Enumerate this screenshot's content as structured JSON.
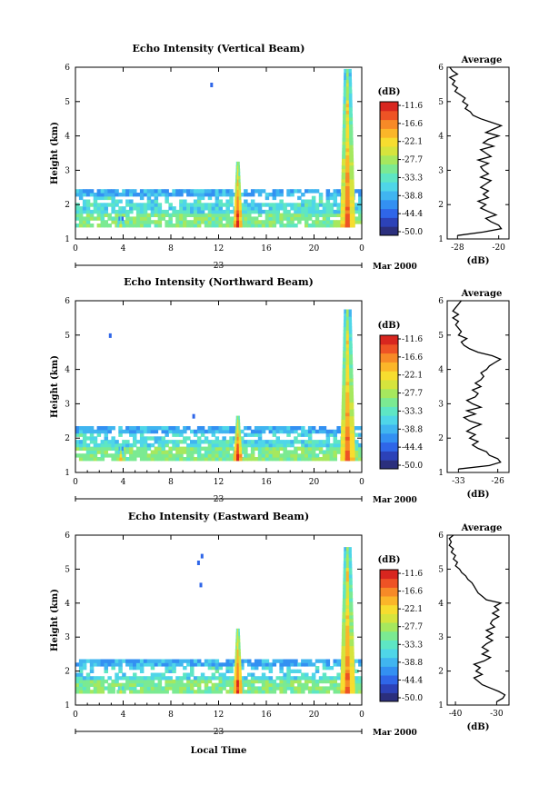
{
  "chart_data": [
    {
      "type": "heatmap",
      "title": "Echo Intensity (Vertical Beam)",
      "ylabel": "Height (km)",
      "x_ticks": [
        "0",
        "4",
        "8",
        "12",
        "16",
        "20",
        "0"
      ],
      "x_range": [
        0,
        24
      ],
      "date_label": "23",
      "date_right": "Mar 2000",
      "y_ticks": [
        "1",
        "2",
        "3",
        "4",
        "5",
        "6"
      ],
      "ylim": [
        1,
        6
      ],
      "colorbar": {
        "unit": "(dB)",
        "ticks": [
          "-11.6",
          "-16.6",
          "-22.1",
          "-27.7",
          "-33.3",
          "-38.8",
          "-44.4",
          "-50.0"
        ],
        "range": [
          -50.0,
          -11.6
        ]
      },
      "layers": {
        "top": 2.45,
        "gap_top": 2.2,
        "gap_bottom": 2.0,
        "bottom": 1.35
      },
      "spikes": [
        {
          "t": 3.8,
          "top": 1.65,
          "peak": -24
        },
        {
          "t": 13.6,
          "top": 3.2,
          "peak": -11
        },
        {
          "t": 22.8,
          "top": 5.9,
          "peak": -14
        }
      ],
      "isolated": [
        {
          "t": 11.3,
          "h": 5.45
        }
      ],
      "average": {
        "title": "Average",
        "xlabel": "(dB)",
        "x_ticks": [
          "-28",
          "-20"
        ],
        "xlim": [
          -30,
          -18
        ],
        "y_ticks": [
          "1",
          "2",
          "3",
          "4",
          "5",
          "6"
        ],
        "ylim": [
          1,
          6
        ],
        "h": [
          1.1,
          1.2,
          1.3,
          1.4,
          1.5,
          1.6,
          1.7,
          1.8,
          1.9,
          2.0,
          2.1,
          2.2,
          2.3,
          2.4,
          2.5,
          2.6,
          2.7,
          2.8,
          2.9,
          3.0,
          3.1,
          3.2,
          3.3,
          3.4,
          3.5,
          3.6,
          3.7,
          3.8,
          3.9,
          4.0,
          4.1,
          4.2,
          4.3,
          4.4,
          4.5,
          4.6,
          4.7,
          4.8,
          4.9,
          5.0,
          5.1,
          5.2,
          5.3,
          5.4,
          5.5,
          5.6,
          5.7,
          5.8,
          5.9,
          6.0
        ],
        "v": [
          -28.0,
          -23.0,
          -19.5,
          -20.0,
          -21.5,
          -22.5,
          -20.5,
          -22.0,
          -23.5,
          -22.5,
          -24.0,
          -22.0,
          -23.0,
          -22.0,
          -23.5,
          -22.5,
          -21.5,
          -23.5,
          -22.0,
          -23.0,
          -23.5,
          -22.0,
          -24.0,
          -21.5,
          -22.5,
          -23.5,
          -21.0,
          -23.0,
          -22.0,
          -20.0,
          -22.5,
          -21.0,
          -19.5,
          -21.5,
          -23.5,
          -25.0,
          -25.5,
          -26.5,
          -26.0,
          -27.0,
          -26.5,
          -27.5,
          -28.5,
          -28.0,
          -29.0,
          -28.5,
          -29.5,
          -28.0,
          -29.0,
          -29.5
        ]
      }
    },
    {
      "type": "heatmap",
      "title": "Echo Intensity (Northward Beam)",
      "ylabel": "Height (km)",
      "x_ticks": [
        "0",
        "4",
        "8",
        "12",
        "16",
        "20",
        "0"
      ],
      "x_range": [
        0,
        24
      ],
      "date_label": "23",
      "date_right": "Mar 2000",
      "y_ticks": [
        "1",
        "2",
        "3",
        "4",
        "5",
        "6"
      ],
      "ylim": [
        1,
        6
      ],
      "colorbar": {
        "unit": "(dB)",
        "ticks": [
          "-11.6",
          "-16.6",
          "-22.1",
          "-27.7",
          "-33.3",
          "-38.8",
          "-44.4",
          "-50.0"
        ],
        "range": [
          -50.0,
          -11.6
        ]
      },
      "layers": {
        "top": 2.35,
        "gap_top": 2.1,
        "gap_bottom": 1.9,
        "bottom": 1.35
      },
      "spikes": [
        {
          "t": 3.8,
          "top": 1.75,
          "peak": -20
        },
        {
          "t": 13.6,
          "top": 2.6,
          "peak": -11
        },
        {
          "t": 22.8,
          "top": 5.7,
          "peak": -14
        }
      ],
      "isolated": [
        {
          "t": 2.8,
          "h": 4.95
        },
        {
          "t": 9.8,
          "h": 2.6
        }
      ],
      "average": {
        "title": "Average",
        "xlabel": "(dB)",
        "x_ticks": [
          "-33",
          "-26"
        ],
        "xlim": [
          -35,
          -24
        ],
        "y_ticks": [
          "1",
          "2",
          "3",
          "4",
          "5",
          "6"
        ],
        "ylim": [
          1,
          6
        ],
        "h": [
          1.1,
          1.2,
          1.3,
          1.4,
          1.5,
          1.6,
          1.7,
          1.8,
          1.9,
          2.0,
          2.1,
          2.2,
          2.3,
          2.4,
          2.5,
          2.6,
          2.7,
          2.8,
          2.9,
          3.0,
          3.1,
          3.2,
          3.3,
          3.4,
          3.5,
          3.6,
          3.7,
          3.8,
          3.9,
          4.0,
          4.1,
          4.2,
          4.3,
          4.4,
          4.5,
          4.6,
          4.7,
          4.8,
          4.9,
          5.0,
          5.1,
          5.2,
          5.3,
          5.4,
          5.5,
          5.6,
          5.7,
          5.8,
          5.9,
          6.0
        ],
        "v": [
          -33.0,
          -27.5,
          -25.5,
          -26.0,
          -27.5,
          -28.0,
          -29.5,
          -30.5,
          -29.5,
          -31.0,
          -30.0,
          -31.5,
          -30.5,
          -29.0,
          -31.0,
          -32.0,
          -30.0,
          -31.5,
          -29.0,
          -30.5,
          -31.5,
          -30.0,
          -29.5,
          -30.5,
          -29.0,
          -30.0,
          -29.0,
          -28.5,
          -29.0,
          -28.0,
          -27.5,
          -26.5,
          -25.5,
          -27.0,
          -29.5,
          -31.0,
          -32.0,
          -32.5,
          -31.5,
          -33.0,
          -32.5,
          -33.0,
          -33.5,
          -33.0,
          -34.0,
          -33.0,
          -34.0,
          -33.5,
          -33.0,
          -32.5
        ]
      }
    },
    {
      "type": "heatmap",
      "title": "Echo Intensity (Eastward Beam)",
      "ylabel": "Height (km)",
      "xlabel": "Local Time",
      "x_ticks": [
        "0",
        "4",
        "8",
        "12",
        "16",
        "20",
        "0"
      ],
      "x_range": [
        0,
        24
      ],
      "date_label": "23",
      "date_right": "Mar 2000",
      "y_ticks": [
        "1",
        "2",
        "3",
        "4",
        "5",
        "6"
      ],
      "ylim": [
        1,
        6
      ],
      "colorbar": {
        "unit": "(dB)",
        "ticks": [
          "-11.6",
          "-16.6",
          "-22.1",
          "-27.7",
          "-33.3",
          "-38.8",
          "-44.4",
          "-50.0"
        ],
        "range": [
          -50.0,
          -11.6
        ]
      },
      "layers": {
        "top": 2.35,
        "gap_top": 2.15,
        "gap_bottom": 1.8,
        "bottom": 1.35
      },
      "spikes": [
        {
          "t": 3.8,
          "top": 1.55,
          "peak": -22
        },
        {
          "t": 13.6,
          "top": 3.2,
          "peak": -11
        },
        {
          "t": 22.8,
          "top": 5.6,
          "peak": -14
        }
      ],
      "isolated": [
        {
          "t": 10.2,
          "h": 5.15
        },
        {
          "t": 10.5,
          "h": 5.35
        },
        {
          "t": 10.4,
          "h": 4.5
        }
      ],
      "average": {
        "title": "Average",
        "xlabel": "(dB)",
        "x_ticks": [
          "-40",
          "-30"
        ],
        "xlim": [
          -42,
          -27
        ],
        "y_ticks": [
          "1",
          "2",
          "3",
          "4",
          "5",
          "6"
        ],
        "ylim": [
          1,
          6
        ],
        "h": [
          1.1,
          1.2,
          1.3,
          1.4,
          1.5,
          1.6,
          1.7,
          1.8,
          1.9,
          2.0,
          2.1,
          2.2,
          2.3,
          2.4,
          2.5,
          2.6,
          2.7,
          2.8,
          2.9,
          3.0,
          3.1,
          3.2,
          3.3,
          3.4,
          3.5,
          3.6,
          3.7,
          3.8,
          3.9,
          4.0,
          4.1,
          4.2,
          4.3,
          4.4,
          4.5,
          4.6,
          4.7,
          4.8,
          4.9,
          5.0,
          5.1,
          5.2,
          5.3,
          5.4,
          5.5,
          5.6,
          5.7,
          5.8,
          5.9,
          6.0
        ],
        "v": [
          -30.0,
          -28.5,
          -28.0,
          -29.5,
          -31.5,
          -33.5,
          -34.5,
          -35.5,
          -33.5,
          -35.0,
          -34.0,
          -35.5,
          -33.0,
          -31.5,
          -33.5,
          -32.0,
          -33.5,
          -32.5,
          -31.0,
          -32.5,
          -31.0,
          -32.5,
          -30.5,
          -31.5,
          -31.0,
          -29.5,
          -31.0,
          -29.5,
          -30.5,
          -29.0,
          -32.5,
          -33.5,
          -34.5,
          -35.0,
          -35.5,
          -36.0,
          -37.0,
          -37.5,
          -38.5,
          -39.0,
          -40.0,
          -39.5,
          -40.5,
          -40.0,
          -41.0,
          -40.5,
          -41.5,
          -41.0,
          -41.5,
          -40.5
        ]
      }
    }
  ]
}
